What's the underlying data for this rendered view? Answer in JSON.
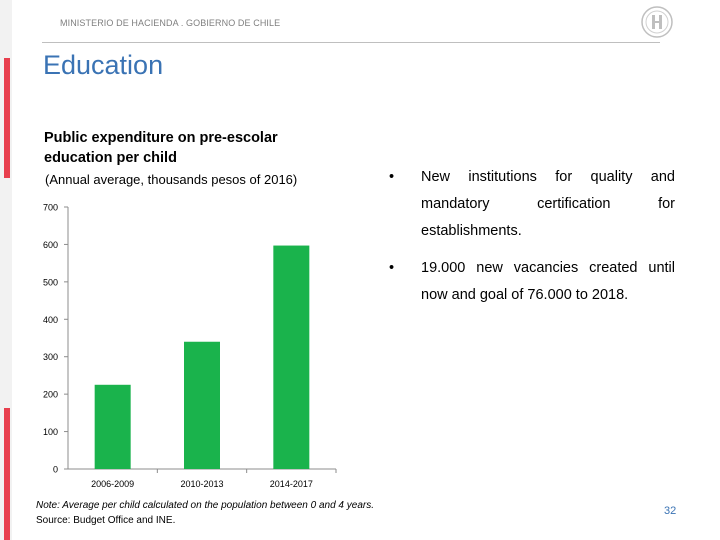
{
  "header": {
    "ministry": "MINISTERIO DE HACIENDA . GOBIERNO DE CHILE",
    "seal_icon": "government-seal-icon"
  },
  "slide": {
    "title": "Education",
    "page_number": "32"
  },
  "chart_data": {
    "type": "bar",
    "title": "Public expenditure on pre-escolar education per child",
    "subtitle": "(Annual average, thousands pesos of 2016)",
    "categories": [
      "2006-2009",
      "2010-2013",
      "2014-2017"
    ],
    "values": [
      225,
      340,
      597
    ],
    "ylim": [
      0,
      700
    ],
    "yticks": [
      "0",
      "100",
      "200",
      "300",
      "400",
      "500",
      "600",
      "700"
    ],
    "bar_color": "#1ab34c",
    "grid": false
  },
  "bullets": [
    "New institutions for quality and mandatory certification for establishments.",
    "19.000 new vacancies created until now and goal of 76.000 to 2018."
  ],
  "bullet_symbol": "•",
  "note": {
    "line1": "Note: Average per child calculated on the population between 0 and 4 years.",
    "line2": "Source: Budget Office and INE."
  }
}
